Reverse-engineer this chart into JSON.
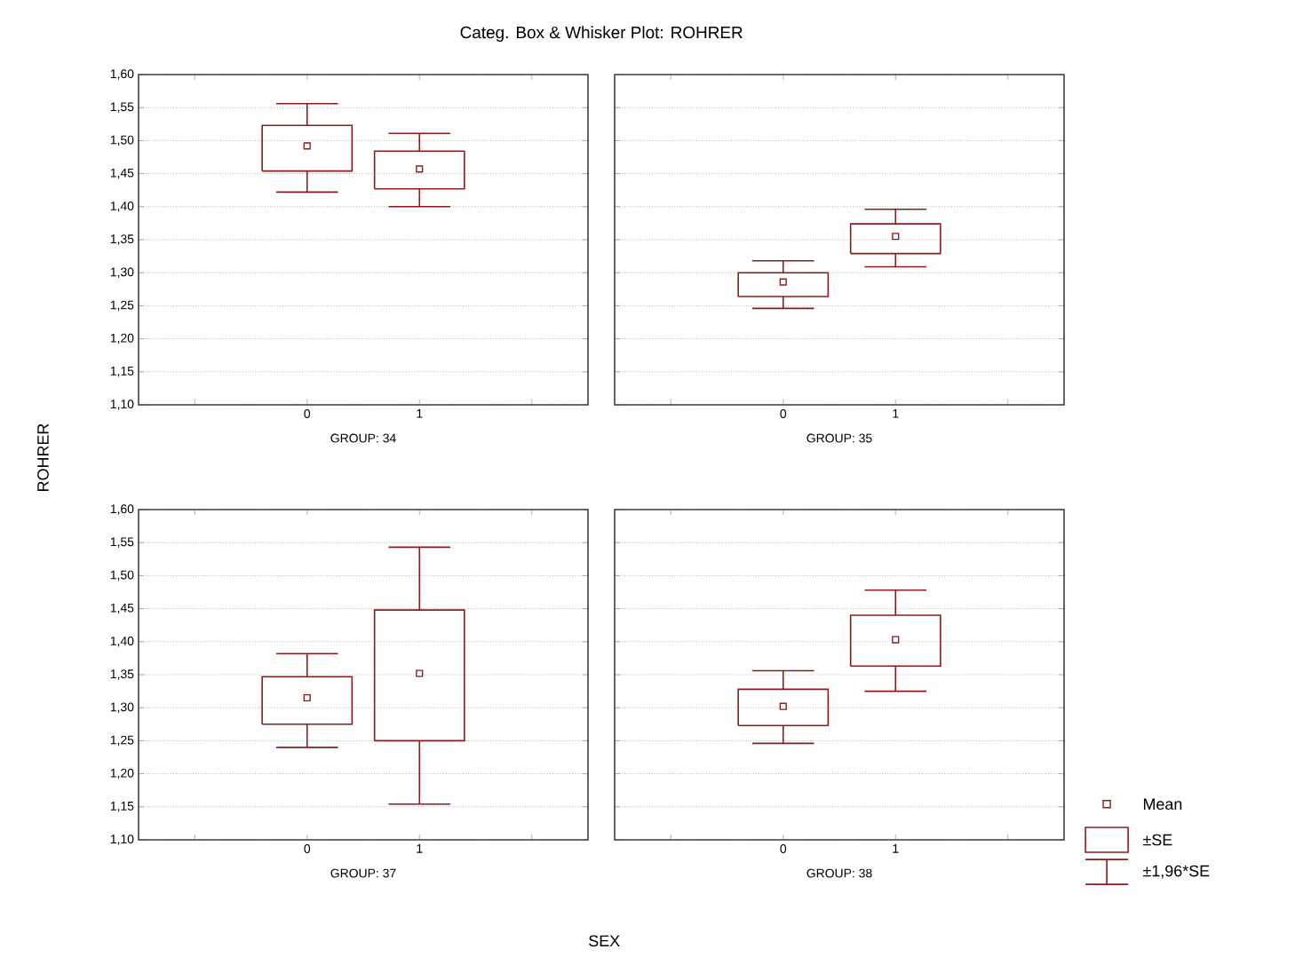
{
  "chart_data": [
    {
      "type": "box",
      "title": "Categ. Box & Whisker Plot:   ROHRER",
      "ylabel": "ROHRER",
      "xlabel": "GROUP: 34",
      "categories": [
        "0",
        "1"
      ],
      "color": "#8c1c1c",
      "grid": "y",
      "ylim": [
        1.1,
        1.6
      ],
      "yticks": [
        {
          "value": 1.1,
          "label": "1,10"
        },
        {
          "value": 1.15,
          "label": "1,15"
        },
        {
          "value": 1.2,
          "label": "1,20"
        },
        {
          "value": 1.25,
          "label": "1,25"
        },
        {
          "value": 1.3,
          "label": "1,30"
        },
        {
          "value": 1.35,
          "label": "1,35"
        },
        {
          "value": 1.4,
          "label": "1,40"
        },
        {
          "value": 1.45,
          "label": "1,45"
        },
        {
          "value": 1.5,
          "label": "1,50"
        },
        {
          "value": 1.55,
          "label": "1,55"
        },
        {
          "value": 1.6,
          "label": "1,60"
        }
      ],
      "boxes": [
        {
          "low": 1.422,
          "q1": 1.454,
          "q3": 1.523,
          "high": 1.556,
          "mean": 1.492
        },
        {
          "low": 1.4,
          "q1": 1.427,
          "q3": 1.484,
          "high": 1.511,
          "mean": 1.457
        }
      ]
    },
    {
      "type": "box",
      "xlabel": "GROUP: 35",
      "categories": [
        "0",
        "1"
      ],
      "color": "#8c1c1c",
      "grid": "y",
      "ylim": [
        1.1,
        1.6
      ],
      "tick_labels": "x",
      "yticks": [
        1.1,
        1.15,
        1.2,
        1.25,
        1.3,
        1.35,
        1.4,
        1.45,
        1.5,
        1.55,
        1.6
      ],
      "boxes": [
        {
          "low": 1.246,
          "q1": 1.264,
          "q3": 1.3,
          "high": 1.318,
          "mean": 1.286
        },
        {
          "low": 1.309,
          "q1": 1.329,
          "q3": 1.374,
          "high": 1.396,
          "mean": 1.355
        }
      ]
    },
    {
      "type": "box",
      "xlabel": "GROUP: 37",
      "categories": [
        "0",
        "1"
      ],
      "color": "#8c1c1c",
      "grid": "y",
      "ylim": [
        1.1,
        1.6
      ],
      "annotations": [
        "SEX"
      ],
      "yticks": [
        {
          "value": 1.1,
          "label": "1,10"
        },
        {
          "value": 1.15,
          "label": "1,15"
        },
        {
          "value": 1.2,
          "label": "1,20"
        },
        {
          "value": 1.25,
          "label": "1,25"
        },
        {
          "value": 1.3,
          "label": "1,30"
        },
        {
          "value": 1.35,
          "label": "1,35"
        },
        {
          "value": 1.4,
          "label": "1,40"
        },
        {
          "value": 1.45,
          "label": "1,45"
        },
        {
          "value": 1.5,
          "label": "1,50"
        },
        {
          "value": 1.55,
          "label": "1,55"
        },
        {
          "value": 1.6,
          "label": "1,60"
        }
      ],
      "boxes": [
        {
          "low": 1.24,
          "q1": 1.275,
          "q3": 1.347,
          "high": 1.382,
          "mean": 1.315
        },
        {
          "low": 1.154,
          "q1": 1.25,
          "q3": 1.448,
          "high": 1.543,
          "mean": 1.352
        }
      ]
    },
    {
      "type": "box",
      "xlabel": "GROUP: 38",
      "categories": [
        "0",
        "1"
      ],
      "color": "#8c1c1c",
      "grid": "y",
      "ylim": [
        1.1,
        1.6
      ],
      "tick_labels": "x",
      "annotations": [
        "Mean",
        "±SE",
        "±1,96*SE"
      ],
      "yticks": [
        1.1,
        1.15,
        1.2,
        1.25,
        1.3,
        1.35,
        1.4,
        1.45,
        1.5,
        1.55,
        1.6
      ],
      "boxes": [
        {
          "low": 1.246,
          "q1": 1.273,
          "q3": 1.328,
          "high": 1.356,
          "mean": 1.302
        },
        {
          "low": 1.325,
          "q1": 1.363,
          "q3": 1.44,
          "high": 1.478,
          "mean": 1.403
        }
      ]
    }
  ]
}
